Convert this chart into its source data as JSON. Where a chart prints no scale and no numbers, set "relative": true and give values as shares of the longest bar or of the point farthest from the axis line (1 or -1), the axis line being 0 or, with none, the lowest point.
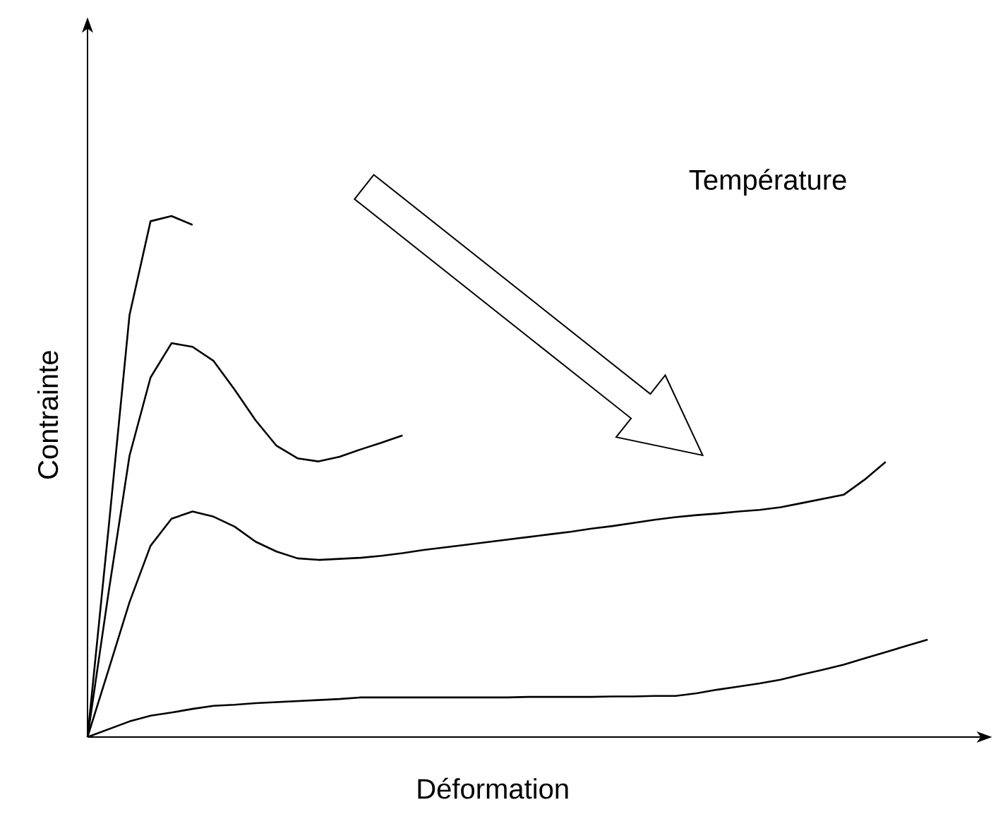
{
  "chart_data": {
    "type": "line",
    "relative": true,
    "xlabel": "Déformation",
    "ylabel": "Contrainte",
    "annotations": [
      "Température"
    ],
    "categories": [
      null,
      null,
      null,
      null,
      null,
      null,
      null,
      null,
      null,
      null,
      null,
      null,
      null,
      null,
      null,
      null,
      null,
      null,
      null,
      null,
      null,
      null,
      null,
      null,
      null,
      null,
      null,
      null,
      null,
      null,
      null,
      null,
      null,
      null,
      null,
      null,
      null,
      null,
      null,
      null,
      null
    ],
    "series": [
      {
        "color": "#000000",
        "values": [
          0,
          0.4,
          0.81,
          0.99,
          1.0,
          0.983,
          null,
          null,
          null,
          null,
          null,
          null,
          null,
          null,
          null,
          null,
          null,
          null,
          null,
          null,
          null,
          null,
          null,
          null,
          null,
          null,
          null,
          null,
          null,
          null,
          null,
          null,
          null,
          null,
          null,
          null,
          null,
          null,
          null,
          null,
          null
        ]
      },
      {
        "color": "#000000",
        "values": [
          0,
          0.277,
          0.54,
          0.69,
          0.756,
          0.749,
          0.722,
          0.667,
          0.608,
          0.559,
          0.535,
          0.529,
          0.538,
          0.552,
          0.565,
          0.579,
          null,
          null,
          null,
          null,
          null,
          null,
          null,
          null,
          null,
          null,
          null,
          null,
          null,
          null,
          null,
          null,
          null,
          null,
          null,
          null,
          null,
          null,
          null,
          null,
          null
        ]
      },
      {
        "color": "#000000",
        "values": [
          0,
          0.129,
          0.259,
          0.367,
          0.419,
          0.433,
          0.423,
          0.404,
          0.375,
          0.356,
          0.343,
          0.34,
          0.342,
          0.344,
          0.348,
          0.353,
          0.359,
          0.364,
          0.369,
          0.374,
          0.379,
          0.384,
          0.389,
          0.394,
          0.4,
          0.405,
          0.411,
          0.417,
          0.422,
          0.426,
          0.429,
          0.433,
          0.436,
          0.441,
          0.449,
          0.457,
          0.465,
          0.494,
          0.528,
          null,
          null
        ]
      },
      {
        "color": "#000000",
        "values": [
          0,
          0.015,
          0.03,
          0.041,
          0.047,
          0.054,
          0.06,
          0.062,
          0.065,
          0.067,
          0.069,
          0.071,
          0.073,
          0.076,
          0.076,
          0.076,
          0.076,
          0.076,
          0.076,
          0.076,
          0.076,
          0.077,
          0.077,
          0.077,
          0.077,
          0.078,
          0.078,
          0.079,
          0.079,
          0.084,
          0.091,
          0.097,
          0.103,
          0.11,
          0.12,
          0.129,
          0.139,
          0.151,
          0.163,
          0.175,
          0.187
        ]
      }
    ]
  }
}
